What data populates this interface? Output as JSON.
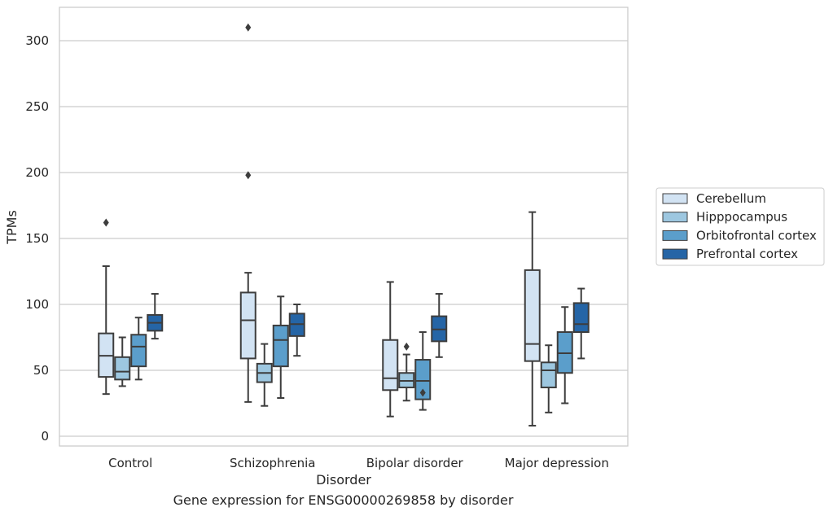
{
  "chart_data": {
    "type": "box",
    "title": "",
    "caption": "Gene expression for ENSG00000269858 by disorder",
    "xlabel": "Disorder",
    "ylabel": "TPMs",
    "ylim": [
      -7,
      325
    ],
    "yticks": [
      0,
      50,
      100,
      150,
      200,
      250,
      300
    ],
    "grid": "horizontal",
    "legend_position": "right",
    "categories": [
      "Control",
      "Schizophrenia",
      "Bipolar disorder",
      "Major depression"
    ],
    "series": [
      {
        "name": "Cerebellum",
        "color": "#d2e3f3",
        "boxes": [
          {
            "whislo": 32,
            "q1": 45,
            "med": 61,
            "q3": 78,
            "whishi": 129,
            "fliers": [
              162
            ]
          },
          {
            "whislo": 26,
            "q1": 59,
            "med": 88,
            "q3": 109,
            "whishi": 124,
            "fliers": [
              198,
              310
            ]
          },
          {
            "whislo": 15,
            "q1": 35,
            "med": 44,
            "q3": 73,
            "whishi": 117,
            "fliers": []
          },
          {
            "whislo": 8,
            "q1": 57,
            "med": 70,
            "q3": 126,
            "whishi": 170,
            "fliers": []
          }
        ]
      },
      {
        "name": "Hipppocampus",
        "color": "#9dc7e0",
        "boxes": [
          {
            "whislo": 38,
            "q1": 43,
            "med": 49,
            "q3": 60,
            "whishi": 75,
            "fliers": []
          },
          {
            "whislo": 23,
            "q1": 41,
            "med": 48,
            "q3": 55,
            "whishi": 70,
            "fliers": []
          },
          {
            "whislo": 27,
            "q1": 37,
            "med": 42,
            "q3": 48,
            "whishi": 62,
            "fliers": [
              68
            ]
          },
          {
            "whislo": 18,
            "q1": 37,
            "med": 50,
            "q3": 56,
            "whishi": 69,
            "fliers": []
          }
        ]
      },
      {
        "name": "Orbitofrontal cortex",
        "color": "#5b9ecb",
        "boxes": [
          {
            "whislo": 43,
            "q1": 53,
            "med": 68,
            "q3": 77,
            "whishi": 90,
            "fliers": []
          },
          {
            "whislo": 29,
            "q1": 53,
            "med": 73,
            "q3": 84,
            "whishi": 106,
            "fliers": []
          },
          {
            "whislo": 20,
            "q1": 28,
            "med": 42,
            "q3": 58,
            "whishi": 79,
            "fliers": [
              33
            ]
          },
          {
            "whislo": 25,
            "q1": 48,
            "med": 63,
            "q3": 79,
            "whishi": 98,
            "fliers": []
          }
        ]
      },
      {
        "name": "Prefrontal cortex",
        "color": "#2565a6",
        "boxes": [
          {
            "whislo": 74,
            "q1": 80,
            "med": 86,
            "q3": 92,
            "whishi": 108,
            "fliers": []
          },
          {
            "whislo": 61,
            "q1": 76,
            "med": 85,
            "q3": 93,
            "whishi": 100,
            "fliers": []
          },
          {
            "whislo": 60,
            "q1": 72,
            "med": 81,
            "q3": 91,
            "whishi": 108,
            "fliers": []
          },
          {
            "whislo": 59,
            "q1": 79,
            "med": 85,
            "q3": 101,
            "whishi": 112,
            "fliers": []
          }
        ]
      }
    ]
  }
}
